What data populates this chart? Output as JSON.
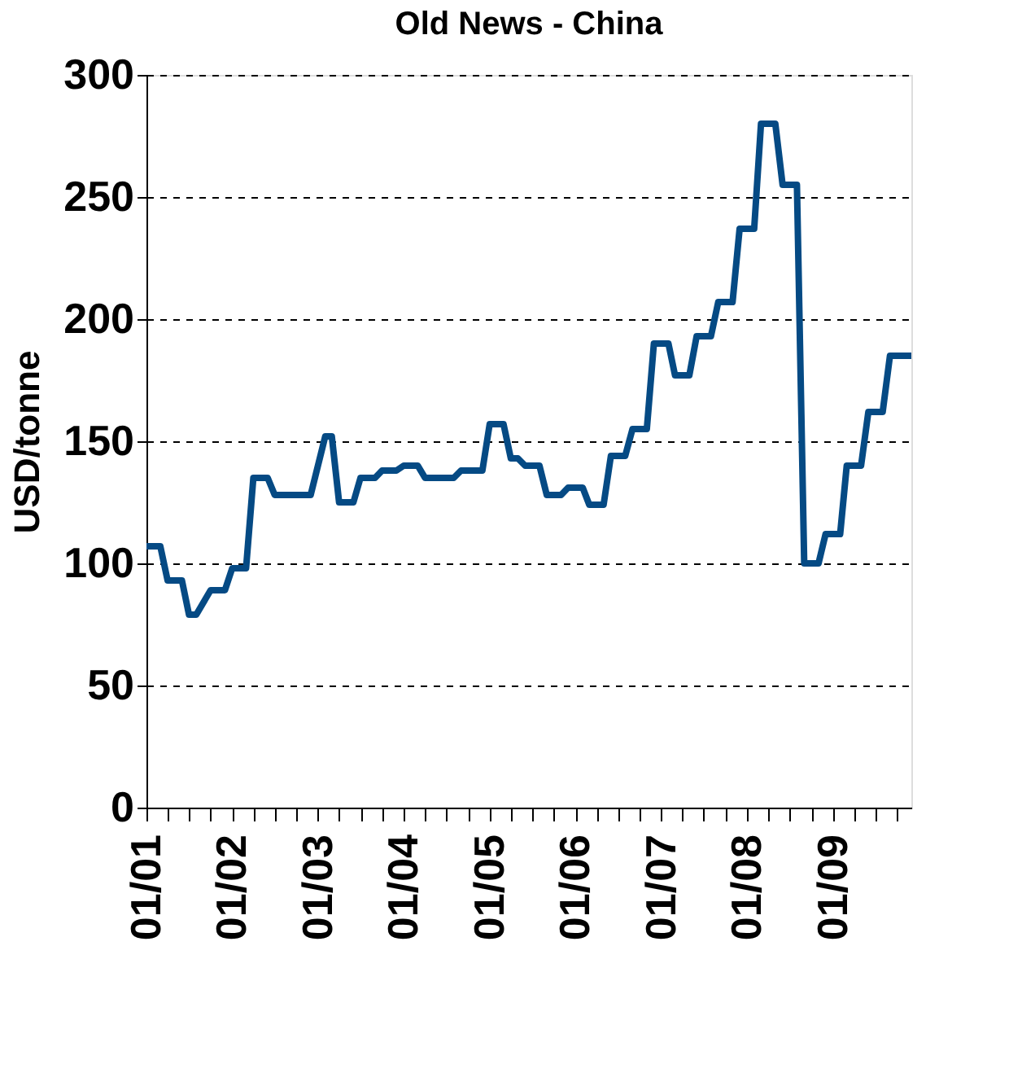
{
  "chart_data": {
    "type": "line",
    "title": "Old News - China",
    "ylabel": "USD/tonne",
    "x": [
      "2001-01",
      "2001-03",
      "2001-04",
      "2001-06",
      "2001-07",
      "2001-08",
      "2001-10",
      "2001-12",
      "2002-01",
      "2002-03",
      "2002-04",
      "2002-06",
      "2002-07",
      "2002-12",
      "2003-02",
      "2003-03",
      "2003-04",
      "2003-06",
      "2003-07",
      "2003-09",
      "2003-10",
      "2003-12",
      "2004-01",
      "2004-03",
      "2004-04",
      "2004-08",
      "2004-09",
      "2004-12",
      "2005-01",
      "2005-03",
      "2005-04",
      "2005-05",
      "2005-06",
      "2005-08",
      "2005-09",
      "2005-11",
      "2005-12",
      "2006-02",
      "2006-03",
      "2006-05",
      "2006-06",
      "2006-08",
      "2006-09",
      "2006-11",
      "2006-12",
      "2007-02",
      "2007-03",
      "2007-05",
      "2007-06",
      "2007-08",
      "2007-09",
      "2007-11",
      "2007-12",
      "2008-02",
      "2008-03",
      "2008-05",
      "2008-06",
      "2008-08",
      "2008-09",
      "2008-11",
      "2008-12",
      "2009-02",
      "2009-03",
      "2009-05",
      "2009-06",
      "2009-08",
      "2009-09",
      "2009-12"
    ],
    "series": [
      {
        "color": "#054a84",
        "values": [
          107,
          107,
          93,
          93,
          79,
          79,
          89,
          89,
          98,
          98,
          135,
          135,
          128,
          128,
          152,
          152,
          125,
          125,
          135,
          135,
          138,
          138,
          140,
          140,
          135,
          135,
          138,
          138,
          157,
          157,
          143,
          143,
          140,
          140,
          128,
          128,
          131,
          131,
          124,
          124,
          144,
          144,
          155,
          155,
          190,
          190,
          177,
          177,
          193,
          193,
          207,
          207,
          237,
          237,
          280,
          280,
          255,
          255,
          100,
          100,
          112,
          112,
          140,
          140,
          162,
          162,
          185,
          185
        ]
      }
    ],
    "xlim": [
      "2001-01",
      "2009-12"
    ],
    "xticks": [
      {
        "value": "2001-01",
        "label": "01/01"
      },
      {
        "value": "2001-04",
        "label": null
      },
      {
        "value": "2001-07",
        "label": null
      },
      {
        "value": "2001-10",
        "label": null
      },
      {
        "value": "2002-01",
        "label": "01/02"
      },
      {
        "value": "2002-04",
        "label": null
      },
      {
        "value": "2002-07",
        "label": null
      },
      {
        "value": "2002-10",
        "label": null
      },
      {
        "value": "2003-01",
        "label": "01/03"
      },
      {
        "value": "2003-04",
        "label": null
      },
      {
        "value": "2003-07",
        "label": null
      },
      {
        "value": "2003-10",
        "label": null
      },
      {
        "value": "2004-01",
        "label": "01/04"
      },
      {
        "value": "2004-04",
        "label": null
      },
      {
        "value": "2004-07",
        "label": null
      },
      {
        "value": "2004-10",
        "label": null
      },
      {
        "value": "2005-01",
        "label": "01/05"
      },
      {
        "value": "2005-04",
        "label": null
      },
      {
        "value": "2005-07",
        "label": null
      },
      {
        "value": "2005-10",
        "label": null
      },
      {
        "value": "2006-01",
        "label": "01/06"
      },
      {
        "value": "2006-04",
        "label": null
      },
      {
        "value": "2006-07",
        "label": null
      },
      {
        "value": "2006-10",
        "label": null
      },
      {
        "value": "2007-01",
        "label": "01/07"
      },
      {
        "value": "2007-04",
        "label": null
      },
      {
        "value": "2007-07",
        "label": null
      },
      {
        "value": "2007-10",
        "label": null
      },
      {
        "value": "2008-01",
        "label": "01/08"
      },
      {
        "value": "2008-04",
        "label": null
      },
      {
        "value": "2008-07",
        "label": null
      },
      {
        "value": "2008-10",
        "label": null
      },
      {
        "value": "2009-01",
        "label": "01/09"
      },
      {
        "value": "2009-04",
        "label": null
      },
      {
        "value": "2009-07",
        "label": null
      },
      {
        "value": "2009-10",
        "label": null
      }
    ],
    "ylim": [
      0,
      300
    ],
    "yticks": [
      0,
      50,
      100,
      150,
      200,
      250,
      300
    ],
    "grid": "y",
    "legend": false,
    "marker": "none",
    "line_style": "solid"
  }
}
